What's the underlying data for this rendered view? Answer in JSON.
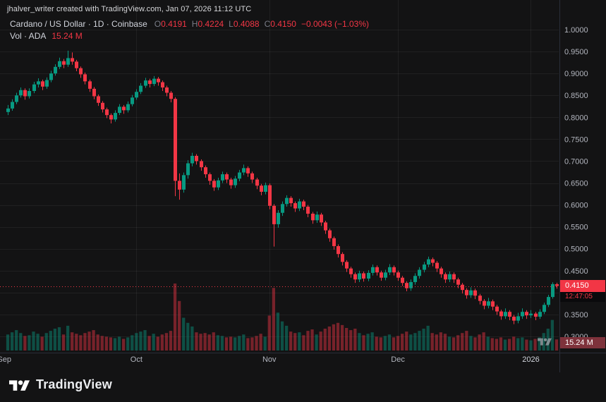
{
  "attribution": "jhalver_writer created with TradingView.com, Jan 07, 2026 11:12 UTC",
  "legend": {
    "title": "Cardano / US Dollar · 1D · Coinbase",
    "ohlc": {
      "o_label": "O",
      "o": "0.4191",
      "h_label": "H",
      "h": "0.4224",
      "l_label": "L",
      "l": "0.4088",
      "c_label": "C",
      "c": "0.4150"
    },
    "change": "−0.0043 (−1.03%)",
    "volume_label": "Vol · ADA",
    "volume_value": "15.24 M"
  },
  "price_axis": {
    "labels": [
      "1.0000",
      "0.9500",
      "0.9000",
      "0.8500",
      "0.8000",
      "0.7500",
      "0.7000",
      "0.6500",
      "0.6000",
      "0.5500",
      "0.5000",
      "0.4500",
      "0.4000",
      "0.3500",
      "0.3000"
    ],
    "last_price_badge": "0.4150",
    "countdown": "12:47:05",
    "volume_badge": "15.24 M"
  },
  "time_axis": {
    "labels": [
      {
        "text": "Sep",
        "index": -0.8,
        "gridline": false,
        "bright": false
      },
      {
        "text": "Oct",
        "index": 30,
        "gridline": true,
        "bright": false
      },
      {
        "text": "Nov",
        "index": 61,
        "gridline": true,
        "bright": false
      },
      {
        "text": "Dec",
        "index": 91,
        "gridline": true,
        "bright": false
      },
      {
        "text": "2026",
        "index": 122,
        "gridline": true,
        "bright": true
      }
    ]
  },
  "footer": {
    "brand": "TradingView"
  },
  "colors": {
    "background": "#131314",
    "grid": "rgba(255,255,255,0.06)",
    "up": "#089981",
    "down": "#f23645",
    "vol_up": "rgba(8,153,129,0.45)",
    "vol_down": "rgba(242,54,69,0.45)",
    "axis_text": "#b2b5be",
    "axis_text_bright": "#d1d4dc",
    "axis_line": "#2a2e39",
    "price_badge_bg": "#f23645",
    "countdown_text": "#f23645",
    "volume_badge_bg": "#7e323b"
  },
  "chart_data": {
    "type": "candlestick+volume",
    "title": "Cardano / US Dollar",
    "exchange": "Coinbase",
    "interval": "1D",
    "start_date": "2025-09-01",
    "end_date": "2026-01-07",
    "y_axis_range": [
      0.3,
      1.0
    ],
    "grid_step": 0.05,
    "last_close": 0.415,
    "last_change": "−0.0043 (−1.03%)",
    "last_volume_millions": 15.24,
    "columns": [
      "open",
      "high",
      "low",
      "close",
      "volume_millions"
    ],
    "candles": [
      [
        0.812,
        0.828,
        0.805,
        0.82,
        22
      ],
      [
        0.82,
        0.841,
        0.815,
        0.835,
        25
      ],
      [
        0.835,
        0.856,
        0.83,
        0.85,
        28
      ],
      [
        0.85,
        0.868,
        0.845,
        0.862,
        24
      ],
      [
        0.862,
        0.866,
        0.84,
        0.848,
        20
      ],
      [
        0.848,
        0.866,
        0.843,
        0.86,
        21
      ],
      [
        0.86,
        0.881,
        0.855,
        0.875,
        26
      ],
      [
        0.875,
        0.889,
        0.868,
        0.882,
        23
      ],
      [
        0.882,
        0.886,
        0.862,
        0.87,
        19
      ],
      [
        0.87,
        0.891,
        0.865,
        0.885,
        24
      ],
      [
        0.885,
        0.906,
        0.88,
        0.9,
        27
      ],
      [
        0.9,
        0.921,
        0.895,
        0.915,
        30
      ],
      [
        0.915,
        0.936,
        0.91,
        0.928,
        32
      ],
      [
        0.928,
        0.933,
        0.912,
        0.92,
        22
      ],
      [
        0.92,
        0.952,
        0.915,
        0.935,
        34
      ],
      [
        0.935,
        0.948,
        0.92,
        0.927,
        25
      ],
      [
        0.927,
        0.931,
        0.905,
        0.912,
        23
      ],
      [
        0.912,
        0.916,
        0.89,
        0.898,
        21
      ],
      [
        0.898,
        0.902,
        0.875,
        0.882,
        24
      ],
      [
        0.882,
        0.886,
        0.858,
        0.865,
        26
      ],
      [
        0.865,
        0.869,
        0.841,
        0.848,
        28
      ],
      [
        0.848,
        0.852,
        0.826,
        0.833,
        22
      ],
      [
        0.833,
        0.837,
        0.811,
        0.818,
        20
      ],
      [
        0.818,
        0.822,
        0.798,
        0.805,
        19
      ],
      [
        0.805,
        0.809,
        0.786,
        0.795,
        18
      ],
      [
        0.795,
        0.816,
        0.79,
        0.81,
        17
      ],
      [
        0.81,
        0.83,
        0.805,
        0.824,
        19
      ],
      [
        0.824,
        0.828,
        0.808,
        0.816,
        16
      ],
      [
        0.816,
        0.836,
        0.811,
        0.83,
        18
      ],
      [
        0.83,
        0.851,
        0.825,
        0.845,
        21
      ],
      [
        0.845,
        0.864,
        0.84,
        0.858,
        24
      ],
      [
        0.858,
        0.878,
        0.853,
        0.872,
        26
      ],
      [
        0.872,
        0.89,
        0.867,
        0.884,
        28
      ],
      [
        0.884,
        0.888,
        0.868,
        0.876,
        20
      ],
      [
        0.876,
        0.894,
        0.871,
        0.888,
        23
      ],
      [
        0.888,
        0.892,
        0.872,
        0.88,
        19
      ],
      [
        0.88,
        0.884,
        0.86,
        0.868,
        22
      ],
      [
        0.868,
        0.872,
        0.848,
        0.856,
        24
      ],
      [
        0.856,
        0.86,
        0.834,
        0.842,
        27
      ],
      [
        0.842,
        0.846,
        0.62,
        0.655,
        92
      ],
      [
        0.655,
        0.672,
        0.612,
        0.635,
        68
      ],
      [
        0.635,
        0.674,
        0.628,
        0.668,
        45
      ],
      [
        0.668,
        0.702,
        0.66,
        0.695,
        38
      ],
      [
        0.695,
        0.719,
        0.688,
        0.712,
        33
      ],
      [
        0.712,
        0.716,
        0.692,
        0.7,
        25
      ],
      [
        0.7,
        0.704,
        0.678,
        0.686,
        23
      ],
      [
        0.686,
        0.69,
        0.662,
        0.67,
        24
      ],
      [
        0.67,
        0.674,
        0.646,
        0.655,
        22
      ],
      [
        0.655,
        0.659,
        0.632,
        0.64,
        25
      ],
      [
        0.64,
        0.662,
        0.634,
        0.656,
        21
      ],
      [
        0.656,
        0.676,
        0.65,
        0.67,
        20
      ],
      [
        0.67,
        0.674,
        0.65,
        0.658,
        18
      ],
      [
        0.658,
        0.662,
        0.637,
        0.645,
        19
      ],
      [
        0.645,
        0.666,
        0.639,
        0.66,
        18
      ],
      [
        0.66,
        0.68,
        0.654,
        0.674,
        20
      ],
      [
        0.674,
        0.692,
        0.668,
        0.684,
        22
      ],
      [
        0.684,
        0.688,
        0.664,
        0.672,
        17
      ],
      [
        0.672,
        0.676,
        0.65,
        0.658,
        18
      ],
      [
        0.658,
        0.662,
        0.636,
        0.644,
        20
      ],
      [
        0.644,
        0.648,
        0.622,
        0.63,
        23
      ],
      [
        0.63,
        0.651,
        0.624,
        0.645,
        19
      ],
      [
        0.645,
        0.649,
        0.59,
        0.598,
        48
      ],
      [
        0.598,
        0.602,
        0.505,
        0.556,
        86
      ],
      [
        0.556,
        0.588,
        0.548,
        0.582,
        52
      ],
      [
        0.582,
        0.608,
        0.575,
        0.602,
        40
      ],
      [
        0.602,
        0.622,
        0.596,
        0.616,
        34
      ],
      [
        0.616,
        0.62,
        0.596,
        0.604,
        26
      ],
      [
        0.604,
        0.608,
        0.584,
        0.592,
        24
      ],
      [
        0.592,
        0.614,
        0.586,
        0.608,
        25
      ],
      [
        0.608,
        0.612,
        0.588,
        0.596,
        21
      ],
      [
        0.596,
        0.6,
        0.572,
        0.58,
        27
      ],
      [
        0.58,
        0.584,
        0.557,
        0.565,
        29
      ],
      [
        0.565,
        0.585,
        0.559,
        0.578,
        22
      ],
      [
        0.578,
        0.582,
        0.552,
        0.56,
        26
      ],
      [
        0.56,
        0.564,
        0.534,
        0.542,
        30
      ],
      [
        0.542,
        0.546,
        0.516,
        0.524,
        33
      ],
      [
        0.524,
        0.528,
        0.498,
        0.506,
        36
      ],
      [
        0.506,
        0.51,
        0.48,
        0.488,
        38
      ],
      [
        0.488,
        0.492,
        0.462,
        0.47,
        35
      ],
      [
        0.47,
        0.474,
        0.447,
        0.455,
        31
      ],
      [
        0.455,
        0.459,
        0.434,
        0.442,
        28
      ],
      [
        0.442,
        0.446,
        0.422,
        0.43,
        30
      ],
      [
        0.43,
        0.45,
        0.424,
        0.444,
        24
      ],
      [
        0.444,
        0.448,
        0.425,
        0.432,
        21
      ],
      [
        0.432,
        0.451,
        0.426,
        0.445,
        23
      ],
      [
        0.445,
        0.464,
        0.439,
        0.458,
        25
      ],
      [
        0.458,
        0.462,
        0.439,
        0.446,
        19
      ],
      [
        0.446,
        0.45,
        0.427,
        0.434,
        18
      ],
      [
        0.434,
        0.452,
        0.428,
        0.446,
        20
      ],
      [
        0.446,
        0.465,
        0.44,
        0.458,
        22
      ],
      [
        0.458,
        0.462,
        0.439,
        0.446,
        18
      ],
      [
        0.446,
        0.45,
        0.427,
        0.434,
        20
      ],
      [
        0.434,
        0.438,
        0.415,
        0.422,
        23
      ],
      [
        0.422,
        0.426,
        0.403,
        0.41,
        26
      ],
      [
        0.41,
        0.43,
        0.404,
        0.424,
        22
      ],
      [
        0.424,
        0.444,
        0.418,
        0.438,
        24
      ],
      [
        0.438,
        0.458,
        0.432,
        0.452,
        27
      ],
      [
        0.452,
        0.47,
        0.446,
        0.464,
        30
      ],
      [
        0.464,
        0.482,
        0.458,
        0.476,
        34
      ],
      [
        0.476,
        0.48,
        0.46,
        0.468,
        24
      ],
      [
        0.468,
        0.472,
        0.447,
        0.455,
        22
      ],
      [
        0.455,
        0.459,
        0.434,
        0.442,
        25
      ],
      [
        0.442,
        0.446,
        0.422,
        0.43,
        23
      ],
      [
        0.43,
        0.448,
        0.424,
        0.442,
        19
      ],
      [
        0.442,
        0.446,
        0.422,
        0.43,
        18
      ],
      [
        0.43,
        0.434,
        0.41,
        0.418,
        21
      ],
      [
        0.418,
        0.422,
        0.398,
        0.406,
        24
      ],
      [
        0.406,
        0.41,
        0.386,
        0.394,
        27
      ],
      [
        0.394,
        0.412,
        0.388,
        0.405,
        20
      ],
      [
        0.405,
        0.409,
        0.385,
        0.393,
        18
      ],
      [
        0.393,
        0.397,
        0.373,
        0.381,
        22
      ],
      [
        0.381,
        0.385,
        0.362,
        0.37,
        25
      ],
      [
        0.37,
        0.388,
        0.364,
        0.38,
        19
      ],
      [
        0.38,
        0.384,
        0.36,
        0.368,
        17
      ],
      [
        0.368,
        0.372,
        0.349,
        0.357,
        16
      ],
      [
        0.357,
        0.361,
        0.338,
        0.346,
        18
      ],
      [
        0.346,
        0.364,
        0.34,
        0.356,
        15
      ],
      [
        0.356,
        0.36,
        0.337,
        0.345,
        16
      ],
      [
        0.345,
        0.349,
        0.328,
        0.336,
        19
      ],
      [
        0.336,
        0.354,
        0.33,
        0.346,
        17
      ],
      [
        0.346,
        0.364,
        0.34,
        0.356,
        18
      ],
      [
        0.356,
        0.36,
        0.34,
        0.348,
        15
      ],
      [
        0.348,
        0.36,
        0.342,
        0.352,
        14
      ],
      [
        0.352,
        0.356,
        0.337,
        0.345,
        16
      ],
      [
        0.345,
        0.362,
        0.34,
        0.356,
        18
      ],
      [
        0.356,
        0.377,
        0.351,
        0.372,
        24
      ],
      [
        0.372,
        0.395,
        0.367,
        0.39,
        30
      ],
      [
        0.39,
        0.4235,
        0.386,
        0.4193,
        42
      ],
      [
        0.4191,
        0.4224,
        0.4088,
        0.415,
        15.24
      ]
    ]
  }
}
